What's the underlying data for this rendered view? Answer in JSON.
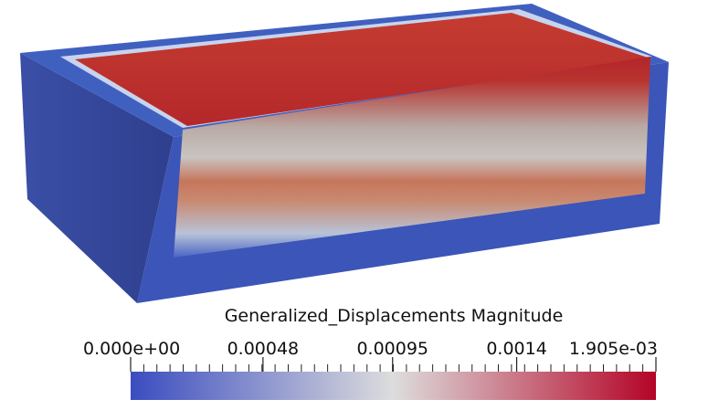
{
  "colorbar": {
    "title": "Generalized_Displacements Magnitude",
    "range": [
      0,
      0.001905
    ],
    "ticks": [
      {
        "value": 0,
        "label": "0.000e+00"
      },
      {
        "value": 0.00048,
        "label": "0.00048"
      },
      {
        "value": 0.00095,
        "label": "0.00095"
      },
      {
        "value": 0.0014,
        "label": "0.0014"
      },
      {
        "value": 0.001905,
        "label": "1.905e-03"
      }
    ],
    "colors": [
      "#3b4cc0",
      "#dddddd",
      "#b40426"
    ]
  }
}
